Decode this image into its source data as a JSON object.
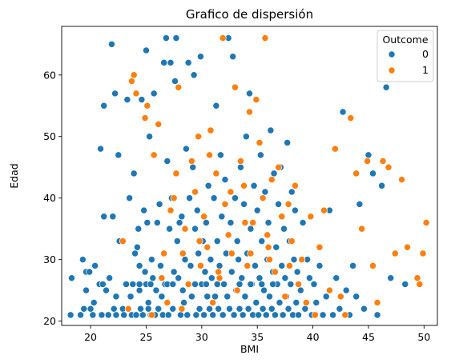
{
  "chart_data": {
    "type": "scatter",
    "title": "Grafico de dispersión",
    "xlabel": "BMI",
    "ylabel": "Edad",
    "xlim": [
      17.4,
      51.2
    ],
    "ylim": [
      19.3,
      67.9
    ],
    "xticks": [
      20,
      25,
      30,
      35,
      40,
      45,
      50
    ],
    "yticks": [
      20,
      30,
      40,
      50,
      60
    ],
    "grid": false,
    "legend": {
      "title": "Outcome",
      "placement": "top-right"
    },
    "colors": {
      "0": "#1f77b4",
      "1": "#ff7f0e"
    },
    "series": [
      {
        "name": "0",
        "points": [
          [
            18.2,
            21
          ],
          [
            18.3,
            27
          ],
          [
            19.1,
            21
          ],
          [
            19.3,
            30
          ],
          [
            19.4,
            22
          ],
          [
            19.6,
            28
          ],
          [
            19.6,
            25
          ],
          [
            19.9,
            28
          ],
          [
            20.0,
            22
          ],
          [
            20.2,
            21
          ],
          [
            20.3,
            23
          ],
          [
            20.4,
            29
          ],
          [
            20.8,
            26
          ],
          [
            20.9,
            48
          ],
          [
            21.0,
            21
          ],
          [
            21.1,
            26
          ],
          [
            21.2,
            55
          ],
          [
            21.2,
            37
          ],
          [
            21.4,
            25
          ],
          [
            21.6,
            21
          ],
          [
            21.7,
            27
          ],
          [
            21.9,
            65
          ],
          [
            22.0,
            37
          ],
          [
            22.1,
            22
          ],
          [
            22.2,
            57
          ],
          [
            22.3,
            21
          ],
          [
            22.3,
            24
          ],
          [
            22.5,
            47
          ],
          [
            22.6,
            33
          ],
          [
            22.9,
            22
          ],
          [
            23.0,
            21
          ],
          [
            23.2,
            26
          ],
          [
            23.3,
            56
          ],
          [
            23.4,
            22
          ],
          [
            23.5,
            40
          ],
          [
            23.6,
            24
          ],
          [
            23.7,
            21
          ],
          [
            23.8,
            26
          ],
          [
            23.9,
            44
          ],
          [
            24.0,
            31
          ],
          [
            24.1,
            21
          ],
          [
            24.2,
            32
          ],
          [
            24.3,
            35
          ],
          [
            24.4,
            29
          ],
          [
            24.4,
            25
          ],
          [
            24.5,
            22
          ],
          [
            24.6,
            56
          ],
          [
            24.7,
            21
          ],
          [
            24.8,
            38
          ],
          [
            24.9,
            28
          ],
          [
            25.0,
            26
          ],
          [
            25.0,
            64
          ],
          [
            25.1,
            36
          ],
          [
            25.2,
            22
          ],
          [
            25.2,
            23
          ],
          [
            25.3,
            50
          ],
          [
            25.4,
            21
          ],
          [
            25.5,
            30
          ],
          [
            25.6,
            27
          ],
          [
            25.7,
            57
          ],
          [
            25.8,
            21
          ],
          [
            25.9,
            25
          ],
          [
            26.0,
            36
          ],
          [
            26.1,
            22
          ],
          [
            26.2,
            39
          ],
          [
            26.3,
            29
          ],
          [
            26.4,
            24
          ],
          [
            26.5,
            21
          ],
          [
            26.6,
            62
          ],
          [
            26.7,
            26
          ],
          [
            26.8,
            66
          ],
          [
            26.9,
            46
          ],
          [
            27.0,
            21
          ],
          [
            27.1,
            35
          ],
          [
            27.2,
            62
          ],
          [
            27.3,
            40
          ],
          [
            27.4,
            22
          ],
          [
            27.5,
            28
          ],
          [
            27.6,
            59
          ],
          [
            27.7,
            66
          ],
          [
            27.8,
            33
          ],
          [
            27.9,
            27
          ],
          [
            28.0,
            36
          ],
          [
            28.1,
            21
          ],
          [
            28.2,
            37
          ],
          [
            28.3,
            25
          ],
          [
            28.4,
            23
          ],
          [
            28.5,
            30
          ],
          [
            28.6,
            48
          ],
          [
            28.7,
            21
          ],
          [
            28.8,
            62
          ],
          [
            28.9,
            40
          ],
          [
            29.0,
            29
          ],
          [
            29.1,
            24
          ],
          [
            29.2,
            45
          ],
          [
            29.3,
            60
          ],
          [
            29.4,
            35
          ],
          [
            29.5,
            21
          ],
          [
            29.6,
            38
          ],
          [
            29.7,
            31
          ],
          [
            29.8,
            22
          ],
          [
            29.9,
            63
          ],
          [
            30.0,
            26
          ],
          [
            30.1,
            33
          ],
          [
            30.2,
            21
          ],
          [
            30.3,
            28
          ],
          [
            30.4,
            36
          ],
          [
            30.5,
            24
          ],
          [
            30.6,
            42
          ],
          [
            30.7,
            22
          ],
          [
            30.8,
            30
          ],
          [
            30.9,
            27
          ],
          [
            31.0,
            21
          ],
          [
            31.1,
            40
          ],
          [
            31.2,
            24
          ],
          [
            31.3,
            55
          ],
          [
            31.4,
            33
          ],
          [
            31.5,
            22
          ],
          [
            31.6,
            29
          ],
          [
            31.7,
            47
          ],
          [
            31.8,
            37
          ],
          [
            31.9,
            21
          ],
          [
            32.0,
            26
          ],
          [
            32.1,
            43
          ],
          [
            32.2,
            31
          ],
          [
            32.3,
            24
          ],
          [
            32.4,
            66
          ],
          [
            32.5,
            22
          ],
          [
            32.6,
            36
          ],
          [
            32.7,
            28
          ],
          [
            32.8,
            63
          ],
          [
            32.9,
            21
          ],
          [
            33.0,
            40
          ],
          [
            33.1,
            25
          ],
          [
            33.2,
            33
          ],
          [
            33.3,
            30
          ],
          [
            33.4,
            22
          ],
          [
            33.5,
            45
          ],
          [
            33.6,
            27
          ],
          [
            33.7,
            21
          ],
          [
            33.8,
            39
          ],
          [
            33.9,
            24
          ],
          [
            34.0,
            50
          ],
          [
            34.1,
            31
          ],
          [
            34.2,
            22
          ],
          [
            34.3,
            57
          ],
          [
            34.4,
            35
          ],
          [
            34.5,
            26
          ],
          [
            34.6,
            21
          ],
          [
            34.7,
            42
          ],
          [
            34.8,
            29
          ],
          [
            34.9,
            23
          ],
          [
            35.0,
            38
          ],
          [
            35.1,
            21
          ],
          [
            35.2,
            27
          ],
          [
            35.3,
            47
          ],
          [
            35.4,
            33
          ],
          [
            35.5,
            22
          ],
          [
            35.6,
            25
          ],
          [
            35.7,
            41
          ],
          [
            35.8,
            21
          ],
          [
            35.9,
            30
          ],
          [
            36.0,
            36
          ],
          [
            36.1,
            24
          ],
          [
            36.2,
            51
          ],
          [
            36.3,
            22
          ],
          [
            36.4,
            28
          ],
          [
            36.5,
            44
          ],
          [
            36.6,
            21
          ],
          [
            36.7,
            32
          ],
          [
            36.8,
            26
          ],
          [
            36.9,
            39
          ],
          [
            37.0,
            23
          ],
          [
            37.1,
            45
          ],
          [
            37.2,
            29
          ],
          [
            37.3,
            21
          ],
          [
            37.4,
            35
          ],
          [
            37.5,
            27
          ],
          [
            37.6,
            24
          ],
          [
            37.7,
            49
          ],
          [
            37.8,
            22
          ],
          [
            37.9,
            33
          ],
          [
            38.0,
            26
          ],
          [
            38.1,
            41
          ],
          [
            38.2,
            21
          ],
          [
            38.3,
            30
          ],
          [
            38.4,
            38
          ],
          [
            38.5,
            23
          ],
          [
            38.6,
            28
          ],
          [
            38.7,
            21
          ],
          [
            38.9,
            25
          ],
          [
            39.1,
            36
          ],
          [
            39.3,
            22
          ],
          [
            39.5,
            30
          ],
          [
            39.7,
            27
          ],
          [
            39.9,
            21
          ],
          [
            40.1,
            26
          ],
          [
            40.3,
            23
          ],
          [
            40.6,
            29
          ],
          [
            40.9,
            21
          ],
          [
            41.2,
            24
          ],
          [
            41.5,
            38
          ],
          [
            41.8,
            21
          ],
          [
            42.1,
            27
          ],
          [
            42.4,
            22
          ],
          [
            42.7,
            54
          ],
          [
            43.0,
            25
          ],
          [
            43.3,
            21
          ],
          [
            43.6,
            29
          ],
          [
            43.9,
            24
          ],
          [
            44.2,
            39
          ],
          [
            44.6,
            22
          ],
          [
            45.0,
            47
          ],
          [
            45.4,
            44
          ],
          [
            45.8,
            21
          ],
          [
            46.2,
            42
          ],
          [
            46.6,
            58
          ],
          [
            47.0,
            27
          ],
          [
            48.3,
            26
          ],
          [
            36.4,
            26
          ],
          [
            26.9,
            26
          ],
          [
            27.4,
            26
          ],
          [
            29.4,
            26
          ],
          [
            30.4,
            26
          ],
          [
            31.4,
            26
          ],
          [
            33.4,
            26
          ],
          [
            34.4,
            26
          ],
          [
            35.4,
            26
          ],
          [
            25.4,
            26
          ],
          [
            24.4,
            26
          ]
        ]
      },
      {
        "name": "1",
        "points": [
          [
            22.9,
            33
          ],
          [
            23.4,
            22
          ],
          [
            23.7,
            59
          ],
          [
            23.9,
            60
          ],
          [
            24.1,
            57
          ],
          [
            24.9,
            53
          ],
          [
            25.1,
            55
          ],
          [
            25.5,
            21
          ],
          [
            25.7,
            47
          ],
          [
            26.1,
            52
          ],
          [
            26.4,
            27
          ],
          [
            26.6,
            31
          ],
          [
            26.9,
            23
          ],
          [
            27.2,
            38
          ],
          [
            27.5,
            40
          ],
          [
            27.7,
            44
          ],
          [
            27.9,
            58
          ],
          [
            28.2,
            22
          ],
          [
            28.5,
            35
          ],
          [
            28.8,
            26
          ],
          [
            29.1,
            46
          ],
          [
            29.4,
            41
          ],
          [
            29.7,
            50
          ],
          [
            29.9,
            29
          ],
          [
            30.2,
            37
          ],
          [
            30.5,
            32
          ],
          [
            30.8,
            51
          ],
          [
            31.0,
            23
          ],
          [
            31.3,
            44
          ],
          [
            31.6,
            27
          ],
          [
            31.9,
            66
          ],
          [
            32.1,
            39
          ],
          [
            32.4,
            34
          ],
          [
            32.7,
            31
          ],
          [
            33.0,
            58
          ],
          [
            33.2,
            25
          ],
          [
            33.5,
            46
          ],
          [
            33.8,
            42
          ],
          [
            34.1,
            29
          ],
          [
            34.3,
            54
          ],
          [
            34.6,
            36
          ],
          [
            34.9,
            56
          ],
          [
            35.2,
            49
          ],
          [
            35.5,
            40
          ],
          [
            35.7,
            66
          ],
          [
            36.0,
            32
          ],
          [
            36.3,
            43
          ],
          [
            36.6,
            28
          ],
          [
            36.9,
            45
          ],
          [
            37.2,
            37
          ],
          [
            37.5,
            24
          ],
          [
            37.8,
            39
          ],
          [
            38.1,
            33
          ],
          [
            38.4,
            42
          ],
          [
            38.7,
            26
          ],
          [
            39.0,
            30
          ],
          [
            39.4,
            23
          ],
          [
            39.8,
            37
          ],
          [
            40.2,
            21
          ],
          [
            40.6,
            32
          ],
          [
            41.0,
            38
          ],
          [
            41.5,
            25
          ],
          [
            42.0,
            48
          ],
          [
            42.5,
            24
          ],
          [
            42.9,
            21
          ],
          [
            43.4,
            53
          ],
          [
            43.9,
            44
          ],
          [
            44.4,
            35
          ],
          [
            44.9,
            46
          ],
          [
            45.4,
            29
          ],
          [
            45.8,
            23
          ],
          [
            46.3,
            46
          ],
          [
            46.8,
            45
          ],
          [
            47.4,
            31
          ],
          [
            48.0,
            43
          ],
          [
            48.5,
            32
          ],
          [
            49.4,
            27
          ],
          [
            49.6,
            26
          ],
          [
            49.9,
            31
          ],
          [
            50.2,
            36
          ],
          [
            30.7,
            47
          ],
          [
            32.6,
            41
          ],
          [
            34.4,
            31
          ],
          [
            36.1,
            30
          ],
          [
            37.9,
            29
          ],
          [
            28.3,
            31
          ],
          [
            29.8,
            33
          ],
          [
            33.9,
            36
          ],
          [
            35.9,
            34
          ],
          [
            31.5,
            28
          ]
        ]
      }
    ]
  }
}
